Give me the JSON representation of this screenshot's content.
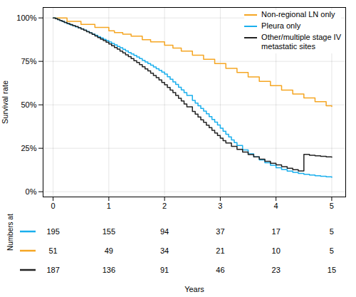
{
  "chart_data": {
    "type": "step",
    "ylabel": "Survival rate",
    "xlabel": "Years",
    "xlim": [
      -0.18,
      5.25
    ],
    "ylim": [
      -0.03,
      1.06
    ],
    "xticks": [
      0,
      1,
      2,
      3,
      4,
      5
    ],
    "yticks": [
      {
        "value": 0.0,
        "label": "0%"
      },
      {
        "value": 0.25,
        "label": "25%"
      },
      {
        "value": 0.5,
        "label": "50%"
      },
      {
        "value": 0.75,
        "label": "75%"
      },
      {
        "value": 1.0,
        "label": "100%"
      }
    ],
    "grid": true,
    "legend": "upper right",
    "annotations": [
      "Numbers at risk"
    ],
    "series": [
      {
        "name": "Non-regional LN only",
        "color": "#F5A623",
        "x": [
          0,
          0.25,
          0.5,
          0.75,
          1.0,
          1.1,
          1.25,
          1.4,
          1.6,
          1.75,
          2.0,
          2.15,
          2.3,
          2.5,
          2.7,
          2.9,
          3.1,
          3.3,
          3.5,
          3.7,
          3.9,
          4.1,
          4.3,
          4.5,
          4.7,
          4.9,
          5.0
        ],
        "values": [
          1.0,
          0.98,
          0.963,
          0.945,
          0.926,
          0.916,
          0.906,
          0.895,
          0.875,
          0.862,
          0.843,
          0.826,
          0.809,
          0.785,
          0.762,
          0.737,
          0.71,
          0.686,
          0.66,
          0.635,
          0.61,
          0.585,
          0.562,
          0.54,
          0.518,
          0.495,
          0.49
        ]
      },
      {
        "name": "Pleura only",
        "color": "#1AAFED",
        "x": [
          0,
          0.05,
          0.08,
          0.12,
          0.16,
          0.2,
          0.24,
          0.28,
          0.32,
          0.36,
          0.4,
          0.45,
          0.5,
          0.55,
          0.6,
          0.65,
          0.7,
          0.75,
          0.8,
          0.85,
          0.9,
          0.95,
          1.0,
          1.05,
          1.1,
          1.15,
          1.2,
          1.25,
          1.3,
          1.35,
          1.4,
          1.45,
          1.5,
          1.55,
          1.6,
          1.65,
          1.7,
          1.75,
          1.8,
          1.85,
          1.9,
          1.95,
          2.0,
          2.05,
          2.1,
          2.15,
          2.2,
          2.25,
          2.3,
          2.35,
          2.4,
          2.5,
          2.55,
          2.6,
          2.65,
          2.7,
          2.75,
          2.8,
          2.85,
          2.9,
          2.95,
          3.0,
          3.05,
          3.1,
          3.15,
          3.2,
          3.25,
          3.3,
          3.4,
          3.5,
          3.6,
          3.7,
          3.8,
          3.9,
          4.0,
          4.1,
          4.2,
          4.3,
          4.4,
          4.5,
          4.6,
          4.7,
          4.8,
          4.9,
          5.0
        ],
        "values": [
          1.0,
          0.995,
          0.99,
          0.985,
          0.98,
          0.974,
          0.969,
          0.964,
          0.959,
          0.954,
          0.948,
          0.943,
          0.937,
          0.93,
          0.922,
          0.915,
          0.907,
          0.9,
          0.892,
          0.885,
          0.877,
          0.869,
          0.861,
          0.853,
          0.845,
          0.836,
          0.828,
          0.819,
          0.81,
          0.801,
          0.793,
          0.784,
          0.775,
          0.766,
          0.756,
          0.747,
          0.737,
          0.728,
          0.718,
          0.708,
          0.698,
          0.688,
          0.677,
          0.662,
          0.647,
          0.632,
          0.617,
          0.601,
          0.586,
          0.57,
          0.554,
          0.525,
          0.51,
          0.495,
          0.479,
          0.464,
          0.448,
          0.432,
          0.416,
          0.4,
          0.384,
          0.365,
          0.348,
          0.331,
          0.315,
          0.298,
          0.282,
          0.266,
          0.24,
          0.218,
          0.2,
          0.183,
          0.167,
          0.152,
          0.138,
          0.128,
          0.119,
          0.111,
          0.105,
          0.1,
          0.096,
          0.092,
          0.089,
          0.086,
          0.083
        ]
      },
      {
        "name": "Other/multiple stage IV\nmetastatic sites",
        "color": "#222222",
        "x": [
          0,
          0.04,
          0.08,
          0.12,
          0.16,
          0.2,
          0.25,
          0.3,
          0.35,
          0.4,
          0.45,
          0.5,
          0.55,
          0.6,
          0.65,
          0.7,
          0.75,
          0.8,
          0.85,
          0.9,
          0.95,
          1.0,
          1.05,
          1.1,
          1.15,
          1.2,
          1.25,
          1.3,
          1.35,
          1.4,
          1.45,
          1.5,
          1.55,
          1.6,
          1.65,
          1.7,
          1.75,
          1.8,
          1.85,
          1.9,
          1.95,
          2.0,
          2.05,
          2.1,
          2.15,
          2.2,
          2.25,
          2.3,
          2.35,
          2.4,
          2.5,
          2.55,
          2.6,
          2.65,
          2.7,
          2.75,
          2.8,
          2.85,
          2.9,
          2.95,
          3.0,
          3.05,
          3.1,
          3.2,
          3.3,
          3.4,
          3.5,
          3.6,
          3.7,
          3.8,
          3.9,
          4.0,
          4.1,
          4.2,
          4.3,
          4.4,
          4.5,
          4.6,
          4.7,
          4.8,
          4.9,
          5.0
        ],
        "values": [
          1.0,
          0.995,
          0.99,
          0.985,
          0.98,
          0.974,
          0.968,
          0.962,
          0.956,
          0.95,
          0.943,
          0.936,
          0.929,
          0.921,
          0.913,
          0.905,
          0.896,
          0.887,
          0.878,
          0.869,
          0.86,
          0.85,
          0.84,
          0.83,
          0.82,
          0.809,
          0.799,
          0.788,
          0.777,
          0.766,
          0.754,
          0.743,
          0.731,
          0.719,
          0.707,
          0.695,
          0.682,
          0.669,
          0.656,
          0.643,
          0.629,
          0.615,
          0.6,
          0.585,
          0.57,
          0.554,
          0.538,
          0.522,
          0.505,
          0.488,
          0.462,
          0.446,
          0.43,
          0.414,
          0.399,
          0.383,
          0.368,
          0.353,
          0.338,
          0.323,
          0.308,
          0.294,
          0.28,
          0.261,
          0.244,
          0.228,
          0.214,
          0.2,
          0.187,
          0.175,
          0.164,
          0.154,
          0.144,
          0.135,
          0.127,
          0.12,
          0.215,
          0.21,
          0.207,
          0.204,
          0.2,
          0.198
        ]
      }
    ],
    "numbers_at_risk": [
      {
        "name": "Pleura only",
        "values": [
          195,
          155,
          94,
          37,
          17,
          5
        ]
      },
      {
        "name": "Non-regional LN only",
        "values": [
          51,
          49,
          34,
          21,
          10,
          5
        ]
      },
      {
        "name": "Other/multiple stage IV\nmetastatic sites",
        "values": [
          187,
          136,
          91,
          46,
          23,
          15
        ]
      }
    ]
  }
}
